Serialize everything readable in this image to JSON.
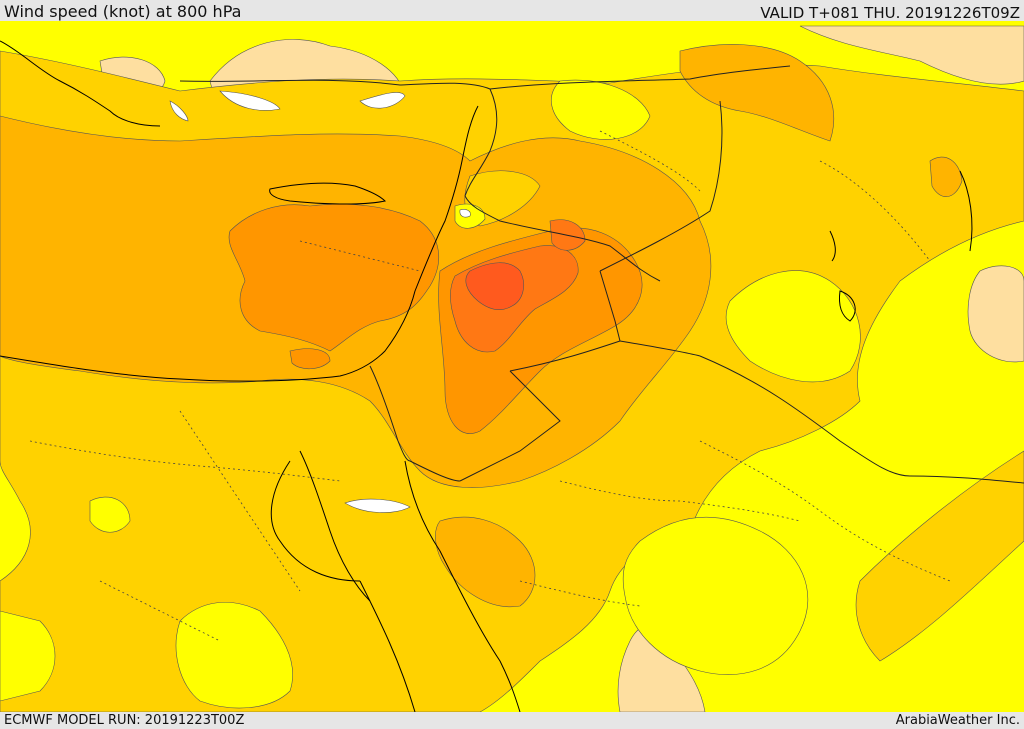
{
  "header": {
    "title": "Wind speed (knot) at 800 hPa",
    "valid": "VALID T+081 THU. 20191226T09Z"
  },
  "footer": {
    "model_run": "ECMWF MODEL RUN: 20191223T00Z",
    "credit": "ArabiaWeather Inc."
  },
  "palette": {
    "very_low": "#ffffff",
    "low_calm": "#fedfa0",
    "base": "#ffff00",
    "mid": "#ffd200",
    "upper": "#ffb400",
    "high": "#ff9600",
    "very_high": "#ff7814",
    "peak": "#ff5a1e"
  }
}
